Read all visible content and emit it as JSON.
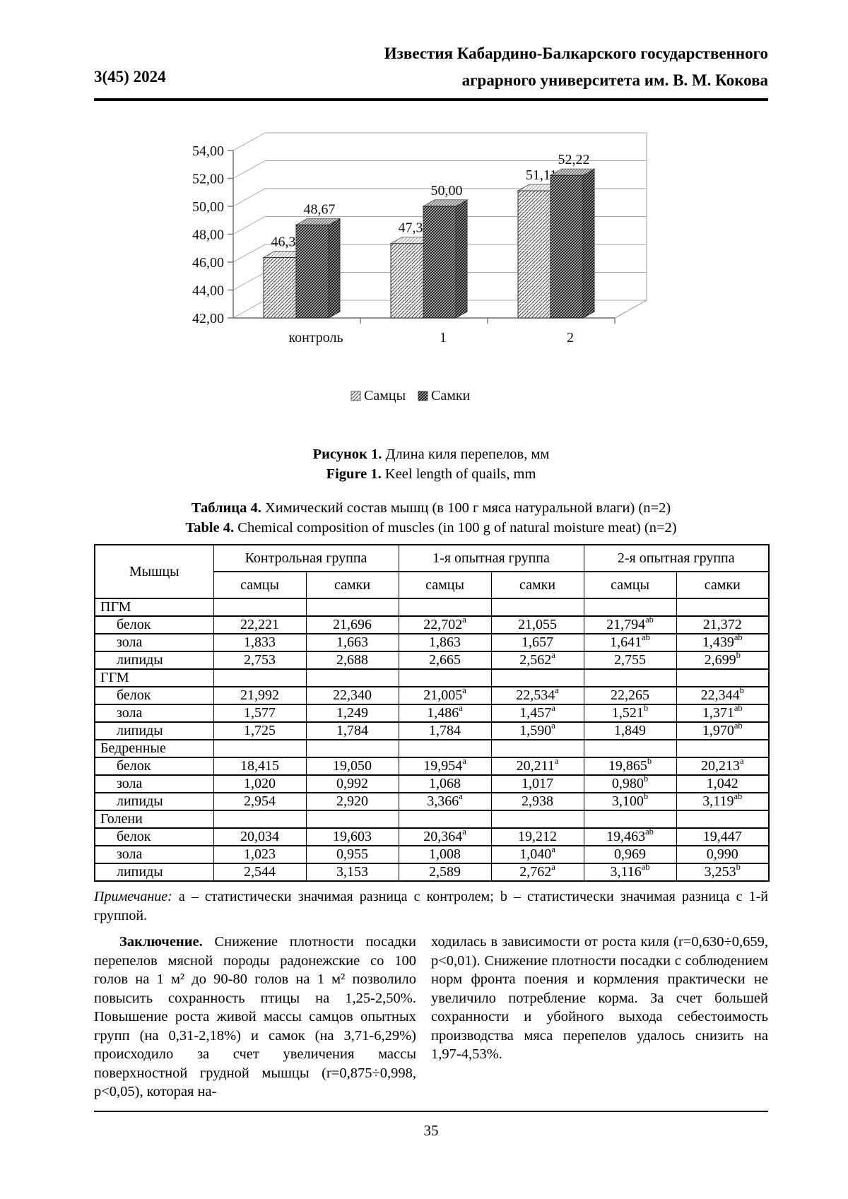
{
  "header": {
    "issue": "3(45) 2024",
    "journal_line1": "Известия Кабардино-Балкарского государственного",
    "journal_line2": "аграрного университета им. В. М. Кокова"
  },
  "chart_data": {
    "type": "bar",
    "style": "3d-clustered-column-hatch-patterns",
    "categories": [
      "контроль",
      "1",
      "2"
    ],
    "series": [
      {
        "name": "Самцы",
        "values": [
          46.33,
          47.33,
          51.11
        ],
        "pattern": "light-diagonal-hatch"
      },
      {
        "name": "Самки",
        "values": [
          48.67,
          50.0,
          52.22
        ],
        "pattern": "dark-trellis-hatch"
      }
    ],
    "value_labels": [
      [
        "46,33",
        "47,33",
        "51,11"
      ],
      [
        "48,67",
        "50,00",
        "52,22"
      ]
    ],
    "ytick_labels": [
      "54,00",
      "52,00",
      "50,00",
      "48,00",
      "46,00",
      "44,00",
      "42,00"
    ],
    "ylim": [
      42,
      54
    ],
    "ytick_step": 2,
    "grid": true,
    "legend_position": "bottom",
    "colors": {
      "grid": "#a6a6a6",
      "axis": "#6e6e6e",
      "bar_outline": "#222222",
      "text": "#111111"
    }
  },
  "figure_caption": {
    "ru_bold": "Рисунок 1.",
    "ru_text": " Длина киля перепелов, мм",
    "en_bold": "Figure 1.",
    "en_text": " Keel length of quails, mm"
  },
  "table_caption": {
    "ru_bold": "Таблица 4.",
    "ru_text": " Химический состав мышц (в 100 г мяса натуральной влаги) (n=2)",
    "en_bold": "Table 4.",
    "en_text": " Chemical composition of muscles (in 100 g of natural moisture meat) (n=2)"
  },
  "table": {
    "col0_header": "Мышцы",
    "groups": [
      "Контрольная группа",
      "1-я опытная группа",
      "2-я опытная группа"
    ],
    "subheaders": [
      "самцы",
      "самки",
      "самцы",
      "самки",
      "самцы",
      "самки"
    ],
    "sections": [
      {
        "name": "ПГМ",
        "rows": [
          {
            "label": "белок",
            "values": [
              "22,221",
              "21,696",
              "22,702^a",
              "21,055",
              "21,794^ab",
              "21,372"
            ]
          },
          {
            "label": "зола",
            "values": [
              "1,833",
              "1,663",
              "1,863",
              "1,657",
              "1,641^ab",
              "1,439^ab"
            ]
          },
          {
            "label": "липиды",
            "values": [
              "2,753",
              "2,688",
              "2,665",
              "2,562^a",
              "2,755",
              "2,699^b"
            ]
          }
        ]
      },
      {
        "name": "ГГМ",
        "rows": [
          {
            "label": "белок",
            "values": [
              "21,992",
              "22,340",
              "21,005^a",
              "22,534^a",
              "22,265",
              "22,344^b"
            ]
          },
          {
            "label": "зола",
            "values": [
              "1,577",
              "1,249",
              "1,486^a",
              "1,457^a",
              "1,521^b",
              "1,371^ab"
            ]
          },
          {
            "label": "липиды",
            "values": [
              "1,725",
              "1,784",
              "1,784",
              "1,590^a",
              "1,849",
              "1,970^ab"
            ]
          }
        ]
      },
      {
        "name": "Бедренные",
        "rows": [
          {
            "label": "белок",
            "values": [
              "18,415",
              "19,050",
              "19,954^a",
              "20,211^a",
              "19,865^b",
              "20,213^a"
            ]
          },
          {
            "label": "зола",
            "values": [
              "1,020",
              "0,992",
              "1,068",
              "1,017",
              "0,980^b",
              "1,042"
            ]
          },
          {
            "label": "липиды",
            "values": [
              "2,954",
              "2,920",
              "3,366^a",
              "2,938",
              "3,100^b",
              "3,119^ab"
            ]
          }
        ]
      },
      {
        "name": "Голени",
        "rows": [
          {
            "label": "белок",
            "values": [
              "20,034",
              "19,603",
              "20,364^a",
              "19,212",
              "19,463^ab",
              "19,447"
            ]
          },
          {
            "label": "зола",
            "values": [
              "1,023",
              "0,955",
              "1,008",
              "1,040^a",
              "0,969",
              "0,990"
            ]
          },
          {
            "label": "липиды",
            "values": [
              "2,544",
              "3,153",
              "2,589",
              "2,762^a",
              "3,116^ab",
              "3,253^b"
            ]
          }
        ]
      }
    ]
  },
  "note": {
    "italic_label": "Примечание:",
    "text": " a – статистически значимая разница с контролем; b – статистически значимая разница с 1-й группой."
  },
  "conclusion": {
    "heading": "Заключение.",
    "col_left": " Снижение плотности посадки перепелов мясной породы радонежские со 100 голов на 1 м² до 90-80 голов на 1 м² позволило повысить сохранность птицы на 1,25-2,50%. Повышение роста живой массы самцов опытных групп (на 0,31-2,18%) и самок (на 3,71-6,29%) происходило за счет увеличения массы поверхностной грудной мышцы (r=0,875÷0,998, p<0,05), которая на-",
    "col_right": "ходилась в зависимости от роста киля (r=0,630÷0,659, p<0,01). Снижение плотности посадки с соблюдением норм фронта поения и кормления практически не увеличило потребление корма. За счет большей сохранности и убойного выхода себестоимость производства мяса перепелов удалось снизить на 1,97-4,53%."
  },
  "footer": {
    "page_number": "35"
  }
}
